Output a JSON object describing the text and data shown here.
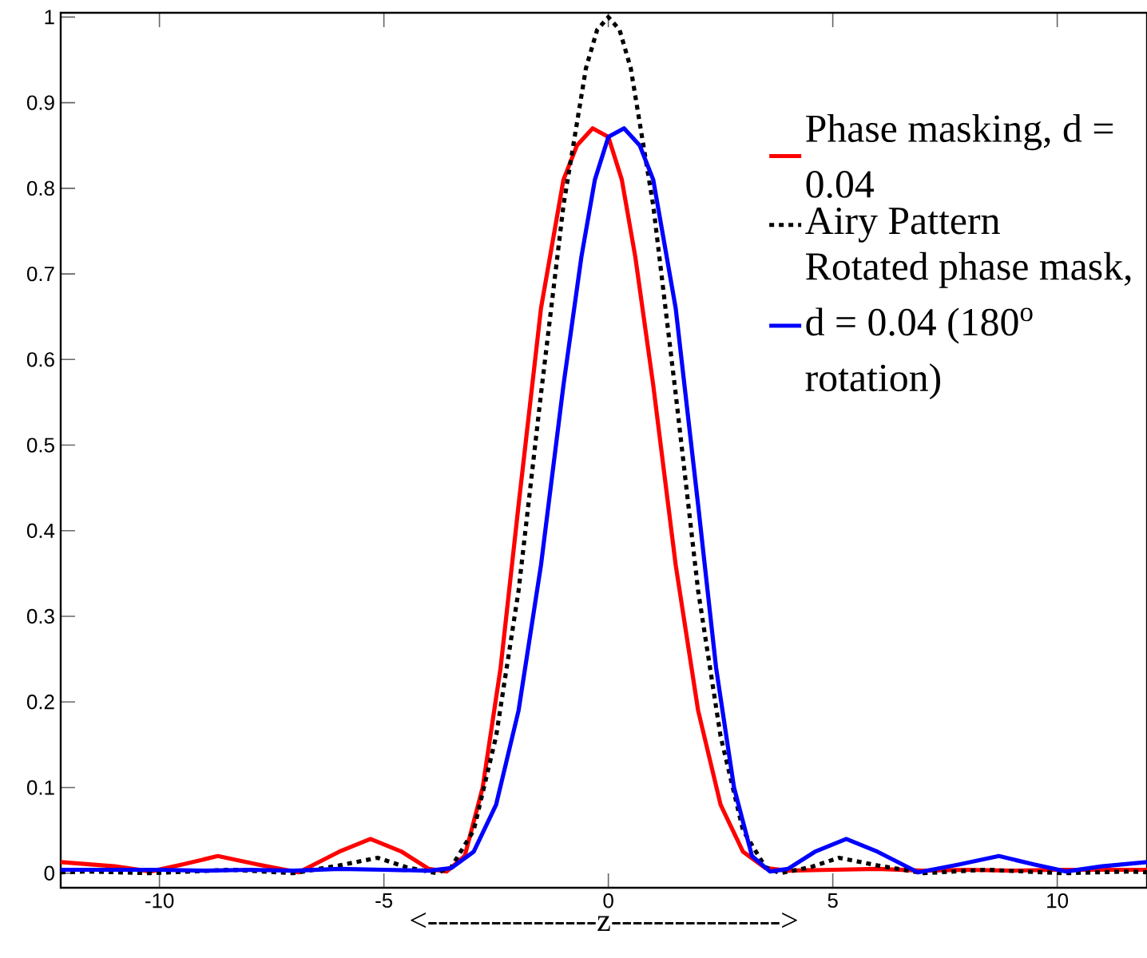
{
  "chart_data": {
    "type": "line",
    "xlabel": "<----------------z---------------->",
    "xlim": [
      -12.2,
      12
    ],
    "ylim": [
      -0.017,
      1.005
    ],
    "xticks": [
      -10,
      -5,
      0,
      5,
      10
    ],
    "yticks": [
      0,
      0.1,
      0.2,
      0.3,
      0.4,
      0.5,
      0.6,
      0.7,
      0.8,
      0.9,
      1
    ],
    "legend": "top right",
    "grid": false,
    "marker": "none",
    "series": [
      {
        "name": "Phase masking, d = 0.04",
        "color": "#ff0000",
        "line_style": "solid",
        "x": [
          -12.2,
          -11,
          -10.2,
          -9.5,
          -8.7,
          -7.8,
          -6.9,
          -6,
          -5.3,
          -4.6,
          -4,
          -3.6,
          -3.2,
          -2.8,
          -2.4,
          -2,
          -1.5,
          -1,
          -0.7,
          -0.35,
          0,
          0.3,
          0.6,
          1,
          1.5,
          2,
          2.5,
          3,
          3.5,
          4,
          5,
          6,
          7,
          8,
          9,
          10,
          12
        ],
        "values": [
          0.013,
          0.008,
          0.002,
          0.01,
          0.02,
          0.01,
          0.001,
          0.025,
          0.04,
          0.025,
          0.005,
          0.002,
          0.02,
          0.1,
          0.24,
          0.43,
          0.66,
          0.81,
          0.85,
          0.87,
          0.86,
          0.81,
          0.72,
          0.57,
          0.36,
          0.19,
          0.08,
          0.025,
          0.006,
          0.003,
          0.004,
          0.005,
          0.003,
          0.004,
          0.003,
          0.004,
          0.004
        ]
      },
      {
        "name": "Airy Pattern",
        "color": "#000000",
        "line_style": "dotted",
        "x": [
          -12.2,
          -11.6,
          -10.17,
          -8.4,
          -7.02,
          -6,
          -5.14,
          -4.5,
          -3.83,
          -3.5,
          -3,
          -2.5,
          -2,
          -1.5,
          -1,
          -0.5,
          -0.25,
          0,
          0.25,
          0.5,
          1,
          1.5,
          2,
          2.5,
          3,
          3.5,
          3.83,
          4.5,
          5.14,
          6,
          7.02,
          8.4,
          10.17,
          11.6,
          12
        ],
        "values": [
          0.001,
          0.002,
          0,
          0.004,
          0,
          0.009,
          0.018,
          0.007,
          0,
          0.007,
          0.05,
          0.16,
          0.33,
          0.56,
          0.78,
          0.94,
          0.985,
          1,
          0.985,
          0.94,
          0.78,
          0.56,
          0.33,
          0.16,
          0.05,
          0.007,
          0,
          0.007,
          0.018,
          0.009,
          0,
          0.004,
          0,
          0.002,
          0.001
        ]
      },
      {
        "name": "Rotated phase mask, d = 0.04 (180$^{o}$ rotation)",
        "color": "#0000ff",
        "line_style": "solid",
        "x": [
          -12.2,
          -10,
          -9,
          -8,
          -7,
          -6,
          -5,
          -4,
          -3.5,
          -3,
          -2.5,
          -2,
          -1.5,
          -1,
          -0.6,
          -0.3,
          0,
          0.35,
          0.7,
          1,
          1.5,
          2,
          2.4,
          2.8,
          3.2,
          3.6,
          4,
          4.6,
          5.3,
          6,
          6.9,
          7.8,
          8.7,
          9.5,
          10.2,
          11,
          12
        ],
        "values": [
          0.004,
          0.004,
          0.003,
          0.004,
          0.003,
          0.005,
          0.004,
          0.003,
          0.006,
          0.025,
          0.08,
          0.19,
          0.36,
          0.57,
          0.72,
          0.81,
          0.86,
          0.87,
          0.85,
          0.81,
          0.66,
          0.43,
          0.24,
          0.1,
          0.02,
          0.002,
          0.005,
          0.025,
          0.04,
          0.025,
          0.001,
          0.01,
          0.02,
          0.01,
          0.002,
          0.008,
          0.013
        ]
      }
    ]
  }
}
